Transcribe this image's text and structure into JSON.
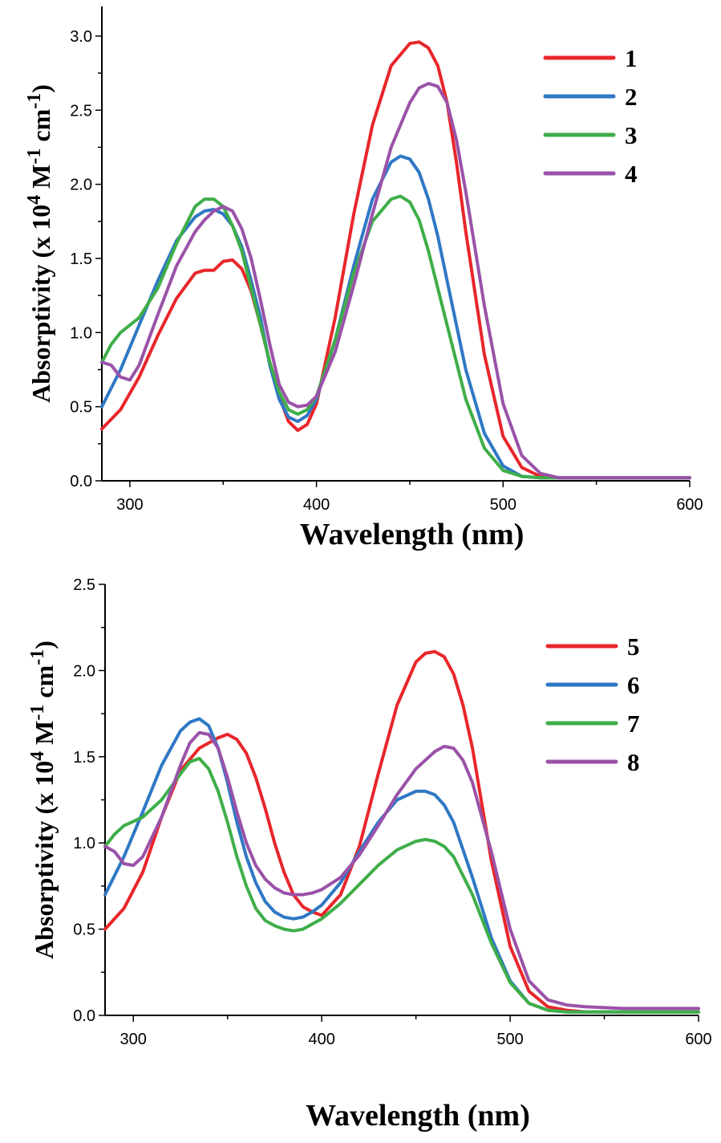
{
  "chart_data": [
    {
      "type": "line",
      "xlabel": "Wavelength (nm)",
      "ylabel_prefix": "Absorptivity (x 10",
      "ylabel_exp1": "4",
      "ylabel_mid": " M",
      "ylabel_exp2": "-1",
      "ylabel_end": " cm",
      "ylabel_exp3": "-1",
      "ylabel_close": ")",
      "xlim": [
        285,
        600
      ],
      "ylim": [
        0,
        3.2
      ],
      "xticks": [
        300,
        400,
        500,
        600
      ],
      "xtick_labels": [
        "300",
        "400",
        "500",
        "600"
      ],
      "yticks": [
        0,
        0.5,
        1.0,
        1.5,
        2.0,
        2.5,
        3.0
      ],
      "ytick_labels": [
        "0.0",
        "0.5",
        "1.0",
        "1.5",
        "2.0",
        "2.5",
        "3.0"
      ],
      "legend_position": "top-right",
      "series": [
        {
          "name": "1",
          "color": "#e8262b",
          "x": [
            285,
            295,
            305,
            315,
            325,
            335,
            340,
            345,
            350,
            355,
            360,
            365,
            370,
            375,
            380,
            385,
            390,
            395,
            400,
            410,
            420,
            430,
            440,
            450,
            455,
            460,
            465,
            470,
            475,
            480,
            490,
            500,
            510,
            520,
            530,
            540,
            560,
            580,
            600
          ],
          "y": [
            0.35,
            0.48,
            0.7,
            0.98,
            1.23,
            1.4,
            1.42,
            1.42,
            1.48,
            1.49,
            1.43,
            1.28,
            1.05,
            0.8,
            0.57,
            0.4,
            0.34,
            0.38,
            0.52,
            1.1,
            1.8,
            2.4,
            2.8,
            2.95,
            2.96,
            2.92,
            2.8,
            2.55,
            2.15,
            1.68,
            0.85,
            0.3,
            0.09,
            0.03,
            0.02,
            0.02,
            0.02,
            0.02,
            0.02
          ]
        },
        {
          "name": "2",
          "color": "#2f78c4",
          "x": [
            285,
            295,
            305,
            315,
            325,
            335,
            340,
            345,
            350,
            355,
            360,
            365,
            370,
            375,
            380,
            385,
            390,
            395,
            400,
            410,
            420,
            430,
            440,
            445,
            450,
            455,
            460,
            465,
            470,
            480,
            490,
            500,
            510,
            520,
            530,
            540,
            560,
            580,
            600
          ],
          "y": [
            0.5,
            0.75,
            1.05,
            1.35,
            1.62,
            1.78,
            1.82,
            1.83,
            1.8,
            1.72,
            1.58,
            1.35,
            1.1,
            0.78,
            0.55,
            0.43,
            0.4,
            0.44,
            0.55,
            0.95,
            1.45,
            1.9,
            2.15,
            2.19,
            2.17,
            2.08,
            1.9,
            1.65,
            1.35,
            0.75,
            0.32,
            0.1,
            0.03,
            0.02,
            0.02,
            0.02,
            0.02,
            0.02,
            0.02
          ]
        },
        {
          "name": "3",
          "color": "#3fae49",
          "x": [
            285,
            290,
            295,
            305,
            315,
            325,
            335,
            340,
            345,
            350,
            355,
            360,
            365,
            370,
            375,
            380,
            385,
            390,
            395,
            400,
            410,
            420,
            430,
            440,
            445,
            450,
            455,
            460,
            470,
            480,
            490,
            500,
            510,
            520,
            530,
            560,
            600
          ],
          "y": [
            0.8,
            0.92,
            1.0,
            1.1,
            1.3,
            1.6,
            1.85,
            1.9,
            1.9,
            1.85,
            1.72,
            1.55,
            1.3,
            1.05,
            0.8,
            0.6,
            0.48,
            0.45,
            0.48,
            0.57,
            0.95,
            1.4,
            1.75,
            1.9,
            1.92,
            1.88,
            1.76,
            1.55,
            1.05,
            0.55,
            0.22,
            0.07,
            0.03,
            0.02,
            0.02,
            0.02,
            0.02
          ]
        },
        {
          "name": "4",
          "color": "#9a52a8",
          "x": [
            285,
            290,
            295,
            300,
            305,
            315,
            325,
            335,
            340,
            345,
            350,
            355,
            360,
            365,
            370,
            375,
            380,
            385,
            390,
            395,
            400,
            410,
            420,
            430,
            440,
            450,
            455,
            460,
            465,
            470,
            475,
            480,
            490,
            500,
            510,
            520,
            530,
            540,
            560,
            580,
            600
          ],
          "y": [
            0.8,
            0.78,
            0.7,
            0.68,
            0.78,
            1.12,
            1.45,
            1.68,
            1.76,
            1.82,
            1.85,
            1.82,
            1.7,
            1.5,
            1.22,
            0.92,
            0.65,
            0.53,
            0.5,
            0.51,
            0.57,
            0.87,
            1.32,
            1.8,
            2.25,
            2.55,
            2.65,
            2.68,
            2.66,
            2.55,
            2.3,
            1.95,
            1.18,
            0.52,
            0.17,
            0.05,
            0.02,
            0.02,
            0.02,
            0.02,
            0.02
          ]
        }
      ]
    },
    {
      "type": "line",
      "xlabel": "Wavelength (nm)",
      "ylabel_prefix": "Absorptivity (x 10",
      "ylabel_exp1": "4",
      "ylabel_mid": " M",
      "ylabel_exp2": "-1",
      "ylabel_end": " cm",
      "ylabel_exp3": "-1",
      "ylabel_close": ")",
      "xlim": [
        285,
        600
      ],
      "ylim": [
        0,
        2.5
      ],
      "xticks": [
        300,
        400,
        500,
        600
      ],
      "xtick_labels": [
        "300",
        "400",
        "500",
        "600"
      ],
      "yticks": [
        0,
        0.5,
        1.0,
        1.5,
        2.0,
        2.5
      ],
      "ytick_labels": [
        "0.0",
        "0.5",
        "1.0",
        "1.5",
        "2.0",
        "2.5"
      ],
      "legend_position": "top-right",
      "series": [
        {
          "name": "5",
          "color": "#e8262b",
          "x": [
            285,
            295,
            305,
            315,
            325,
            335,
            340,
            345,
            350,
            355,
            360,
            365,
            370,
            375,
            380,
            385,
            390,
            395,
            400,
            410,
            420,
            430,
            440,
            450,
            455,
            460,
            465,
            470,
            475,
            480,
            490,
            500,
            510,
            520,
            530,
            540,
            560,
            580,
            600
          ],
          "y": [
            0.5,
            0.62,
            0.83,
            1.15,
            1.42,
            1.55,
            1.58,
            1.61,
            1.63,
            1.6,
            1.52,
            1.38,
            1.2,
            1.0,
            0.83,
            0.7,
            0.63,
            0.6,
            0.58,
            0.7,
            0.98,
            1.4,
            1.8,
            2.05,
            2.1,
            2.11,
            2.08,
            1.98,
            1.8,
            1.55,
            0.9,
            0.4,
            0.14,
            0.05,
            0.03,
            0.02,
            0.02,
            0.02,
            0.02
          ]
        },
        {
          "name": "6",
          "color": "#2f78c4",
          "x": [
            285,
            295,
            305,
            315,
            325,
            330,
            335,
            340,
            345,
            350,
            355,
            360,
            365,
            370,
            375,
            380,
            385,
            390,
            395,
            400,
            410,
            420,
            430,
            440,
            450,
            455,
            460,
            465,
            470,
            480,
            490,
            500,
            510,
            520,
            530,
            540,
            560,
            580,
            600
          ],
          "y": [
            0.7,
            0.92,
            1.18,
            1.45,
            1.65,
            1.7,
            1.72,
            1.68,
            1.55,
            1.35,
            1.12,
            0.92,
            0.77,
            0.66,
            0.6,
            0.57,
            0.56,
            0.57,
            0.6,
            0.64,
            0.77,
            0.95,
            1.12,
            1.25,
            1.3,
            1.3,
            1.28,
            1.22,
            1.12,
            0.8,
            0.45,
            0.2,
            0.07,
            0.03,
            0.02,
            0.02,
            0.02,
            0.02,
            0.02
          ]
        },
        {
          "name": "7",
          "color": "#3fae49",
          "x": [
            285,
            290,
            295,
            305,
            315,
            325,
            330,
            335,
            340,
            345,
            350,
            355,
            360,
            365,
            370,
            375,
            380,
            385,
            390,
            400,
            410,
            420,
            430,
            440,
            450,
            455,
            460,
            465,
            470,
            480,
            490,
            500,
            510,
            520,
            530,
            540,
            560,
            580,
            600
          ],
          "y": [
            0.98,
            1.05,
            1.1,
            1.15,
            1.25,
            1.4,
            1.47,
            1.49,
            1.43,
            1.3,
            1.12,
            0.92,
            0.75,
            0.62,
            0.55,
            0.52,
            0.5,
            0.49,
            0.5,
            0.56,
            0.65,
            0.76,
            0.87,
            0.96,
            1.01,
            1.02,
            1.01,
            0.98,
            0.92,
            0.7,
            0.42,
            0.19,
            0.07,
            0.03,
            0.02,
            0.02,
            0.02,
            0.02,
            0.02
          ]
        },
        {
          "name": "8",
          "color": "#9a52a8",
          "x": [
            285,
            290,
            295,
            300,
            305,
            315,
            325,
            330,
            335,
            340,
            345,
            350,
            355,
            360,
            365,
            370,
            375,
            380,
            385,
            390,
            395,
            400,
            410,
            420,
            430,
            440,
            450,
            460,
            465,
            470,
            475,
            480,
            490,
            500,
            510,
            520,
            530,
            540,
            560,
            580,
            600
          ],
          "y": [
            0.98,
            0.95,
            0.88,
            0.87,
            0.92,
            1.15,
            1.45,
            1.58,
            1.64,
            1.63,
            1.55,
            1.38,
            1.18,
            1.0,
            0.87,
            0.79,
            0.74,
            0.71,
            0.7,
            0.7,
            0.71,
            0.73,
            0.8,
            0.93,
            1.1,
            1.28,
            1.43,
            1.53,
            1.56,
            1.55,
            1.48,
            1.35,
            0.95,
            0.5,
            0.2,
            0.09,
            0.06,
            0.05,
            0.04,
            0.04,
            0.04
          ]
        }
      ]
    }
  ]
}
